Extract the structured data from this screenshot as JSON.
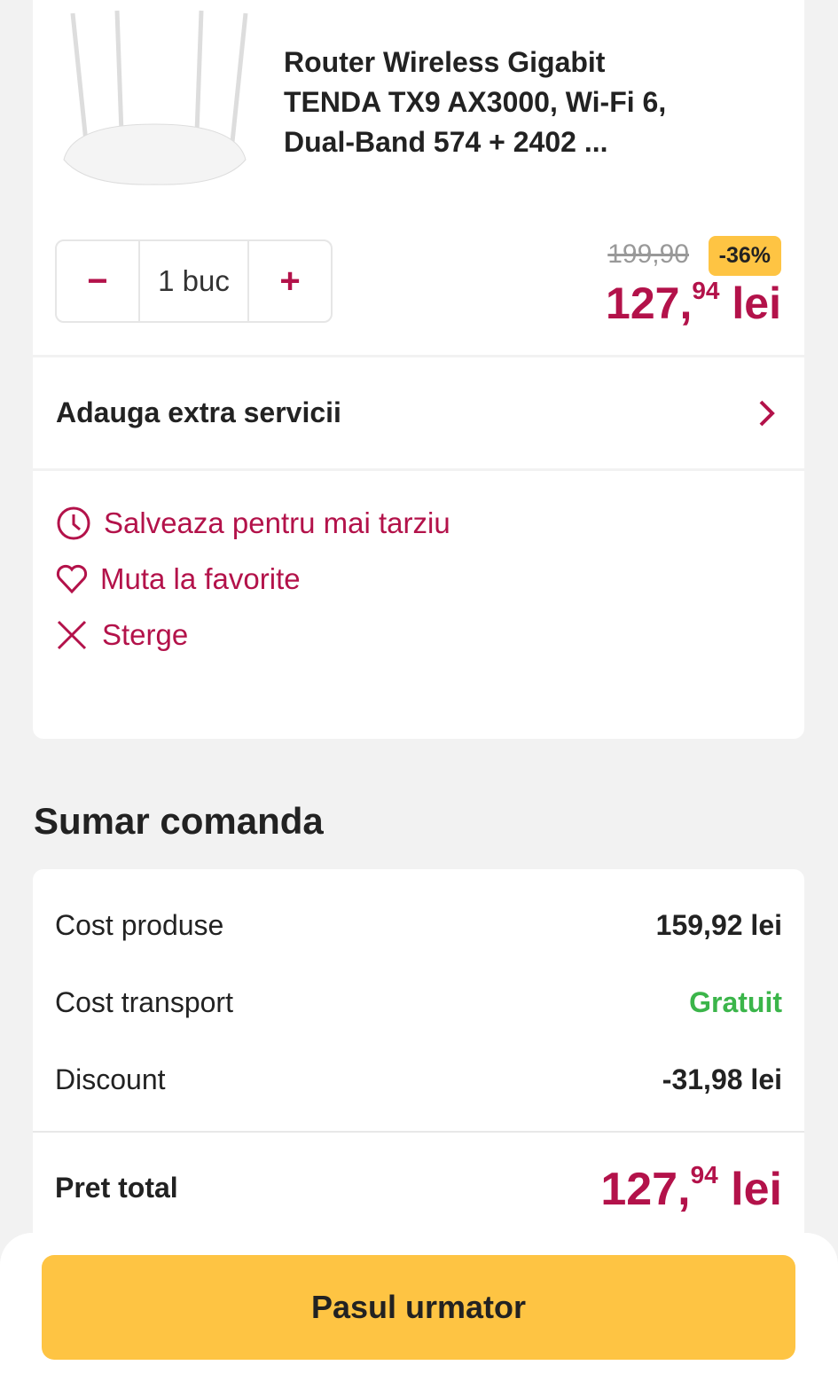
{
  "product": {
    "title": "Router Wireless Gigabit TENDA TX9 AX3000, Wi-Fi 6, Dual-Band 574 + 2402 ...",
    "quantity": "1 buc",
    "old_price": "199,90",
    "discount_badge": "-36%",
    "price_int": "127,",
    "price_dec": "94",
    "currency": "lei"
  },
  "extra_services": {
    "label": "Adauga extra servicii",
    "icon": "chevron-right-icon"
  },
  "actions": [
    {
      "label": "Salveaza pentru mai tarziu",
      "icon": "clock-icon"
    },
    {
      "label": "Muta la favorite",
      "icon": "heart-icon"
    },
    {
      "label": "Sterge",
      "icon": "close-icon"
    }
  ],
  "summary": {
    "heading": "Sumar comanda",
    "rows": [
      {
        "label": "Cost produse",
        "value": "159,92 lei"
      },
      {
        "label": "Cost transport",
        "value": "Gratuit"
      },
      {
        "label": "Discount",
        "value": "-31,98 lei"
      }
    ],
    "total_label": "Pret total",
    "total_int": "127,",
    "total_dec": "94",
    "total_currency": "lei"
  },
  "next_button": "Pasul urmator",
  "colors": {
    "accent": "#b3124a",
    "cta": "#fec443",
    "free": "#3bb54a",
    "background": "#f2f2f2"
  }
}
